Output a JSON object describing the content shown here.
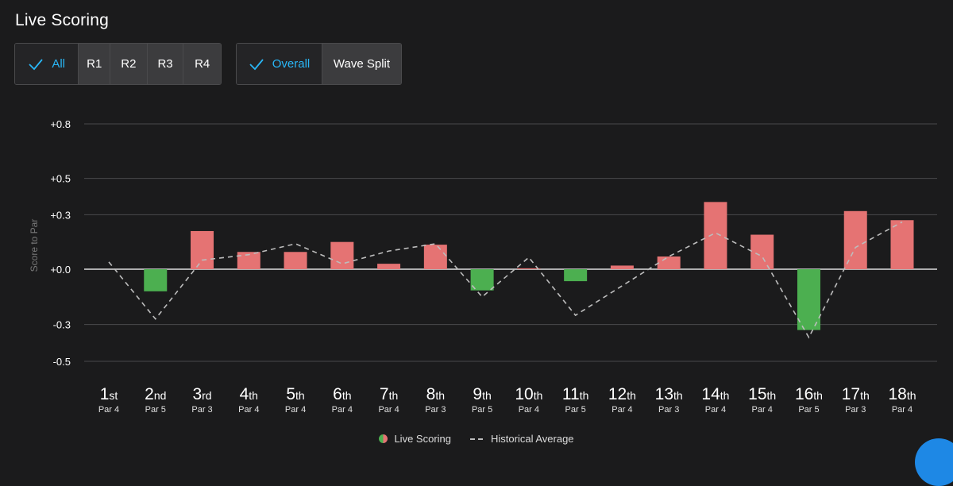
{
  "header": {
    "title": "Live Scoring"
  },
  "round_filter": {
    "options": [
      {
        "label": "All",
        "active": true
      },
      {
        "label": "R1",
        "active": false
      },
      {
        "label": "R2",
        "active": false
      },
      {
        "label": "R3",
        "active": false
      },
      {
        "label": "R4",
        "active": false
      }
    ]
  },
  "view_filter": {
    "options": [
      {
        "label": "Overall",
        "active": true
      },
      {
        "label": "Wave Split",
        "active": false
      }
    ]
  },
  "colors": {
    "positive": "#e57373",
    "negative": "#4caf50",
    "average_line": "#bdbdbd",
    "accent": "#29b6f6"
  },
  "chart_data": {
    "type": "bar",
    "ylabel": "Score to Par",
    "ylim": [
      -0.53,
      0.8
    ],
    "yticks": [
      0.8,
      0.5,
      0.3,
      0.0,
      -0.3,
      -0.5
    ],
    "ytick_labels": [
      "+0.8",
      "+0.5",
      "+0.3",
      "+0.0",
      "-0.3",
      "-0.5"
    ],
    "grid": true,
    "categories": [
      {
        "num": "1",
        "suffix": "st",
        "par": "Par 4"
      },
      {
        "num": "2",
        "suffix": "nd",
        "par": "Par 5"
      },
      {
        "num": "3",
        "suffix": "rd",
        "par": "Par 3"
      },
      {
        "num": "4",
        "suffix": "th",
        "par": "Par 4"
      },
      {
        "num": "5",
        "suffix": "th",
        "par": "Par 4"
      },
      {
        "num": "6",
        "suffix": "th",
        "par": "Par 4"
      },
      {
        "num": "7",
        "suffix": "th",
        "par": "Par 4"
      },
      {
        "num": "8",
        "suffix": "th",
        "par": "Par 3"
      },
      {
        "num": "9",
        "suffix": "th",
        "par": "Par 5"
      },
      {
        "num": "10",
        "suffix": "th",
        "par": "Par 4"
      },
      {
        "num": "11",
        "suffix": "th",
        "par": "Par 5"
      },
      {
        "num": "12",
        "suffix": "th",
        "par": "Par 4"
      },
      {
        "num": "13",
        "suffix": "th",
        "par": "Par 3"
      },
      {
        "num": "14",
        "suffix": "th",
        "par": "Par 4"
      },
      {
        "num": "15",
        "suffix": "th",
        "par": "Par 4"
      },
      {
        "num": "16",
        "suffix": "th",
        "par": "Par 5"
      },
      {
        "num": "17",
        "suffix": "th",
        "par": "Par 3"
      },
      {
        "num": "18",
        "suffix": "th",
        "par": "Par 4"
      }
    ],
    "series": [
      {
        "name": "Live Scoring",
        "kind": "bar",
        "values": [
          0.0,
          -0.12,
          0.21,
          0.095,
          0.095,
          0.15,
          0.03,
          0.135,
          -0.115,
          0.005,
          -0.065,
          0.02,
          0.07,
          0.37,
          0.19,
          -0.33,
          0.32,
          0.27
        ]
      },
      {
        "name": "Historical Average",
        "kind": "line",
        "values": [
          0.04,
          -0.27,
          0.05,
          0.08,
          0.14,
          0.03,
          0.1,
          0.14,
          -0.15,
          0.065,
          -0.25,
          -0.09,
          0.07,
          0.2,
          0.07,
          -0.37,
          0.12,
          0.26
        ]
      }
    ]
  },
  "legend": {
    "items": [
      {
        "label": "Live Scoring"
      },
      {
        "label": "Historical Average"
      }
    ]
  }
}
